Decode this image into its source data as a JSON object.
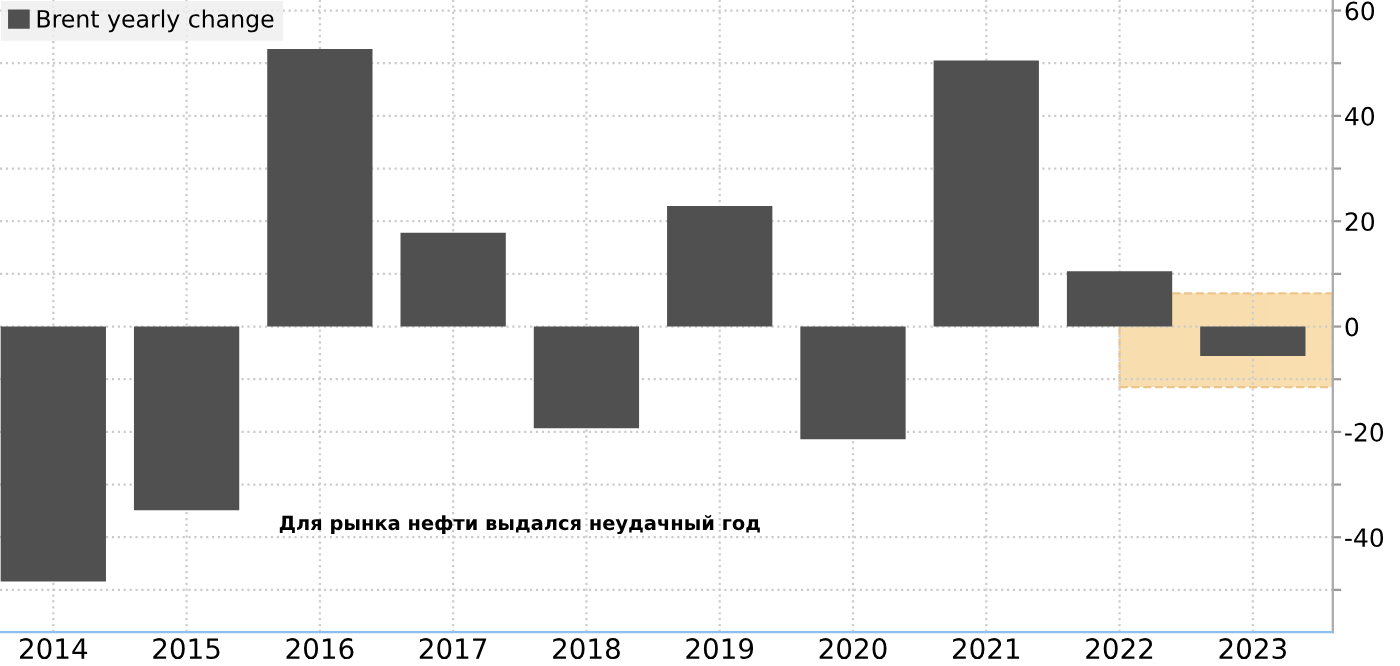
{
  "chart_data": {
    "type": "bar",
    "categories": [
      "2014",
      "2015",
      "2016",
      "2017",
      "2018",
      "2019",
      "2020",
      "2021",
      "2022",
      "2023"
    ],
    "series": [
      {
        "name": "Brent yearly change",
        "color": "#505050",
        "values": [
          -48.4,
          -34.9,
          52.7,
          17.8,
          -19.3,
          22.9,
          -21.4,
          50.5,
          10.5,
          -5.6
        ]
      }
    ],
    "ylim": [
      -58,
      62
    ],
    "yticks": [
      {
        "value": -50,
        "label": null
      },
      -40,
      {
        "value": -30,
        "label": null
      },
      -20,
      {
        "value": -10,
        "label": null
      },
      0,
      {
        "value": 10,
        "label": null
      },
      20,
      {
        "value": 30,
        "label": null
      },
      40,
      {
        "value": 50,
        "label": null
      },
      60
    ],
    "bands": [
      {
        "axis": "y",
        "from": -11.5,
        "to": 6.3,
        "color": "#f5c97a"
      }
    ],
    "annotations": [
      "Для рынка нефти выдался неудачный год"
    ],
    "grid": true,
    "legend": "top left"
  }
}
